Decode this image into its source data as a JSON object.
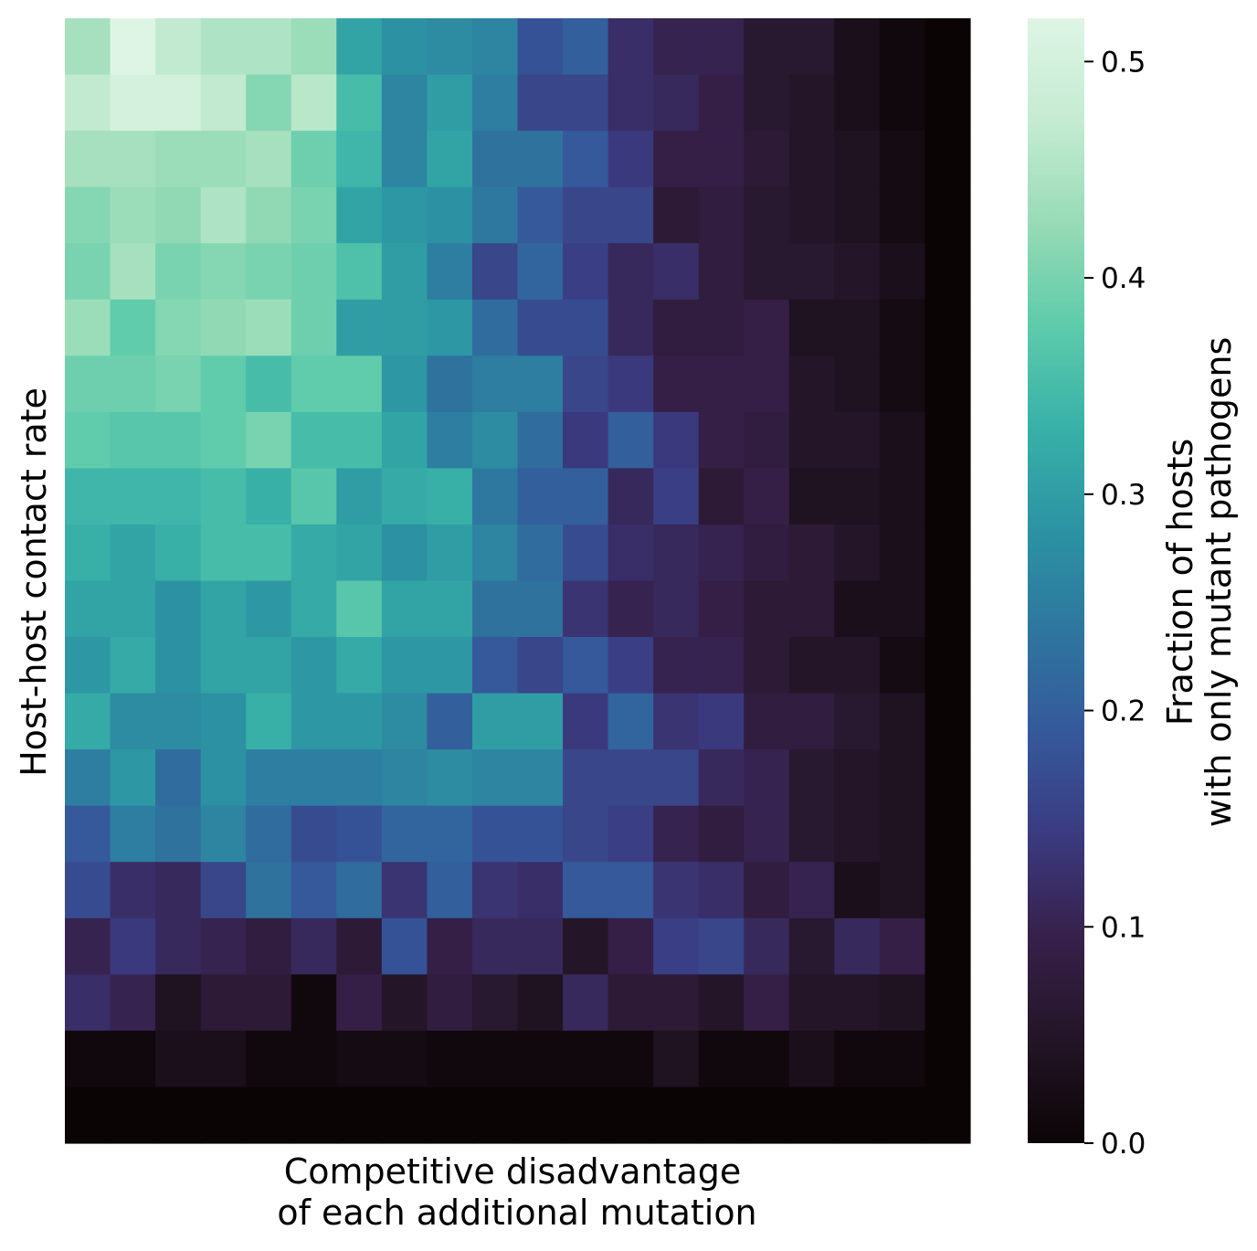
{
  "chart_data": {
    "type": "heatmap",
    "xlabel": [
      "Competitive disadvantage",
      "of each additional mutation"
    ],
    "ylabel": "Host-host contact rate",
    "x_ticks_shown": false,
    "y_ticks_shown": false,
    "grid": false,
    "rows": 20,
    "cols": 20,
    "row_order": "top-to-bottom",
    "values": [
      [
        0.44,
        0.52,
        0.47,
        0.45,
        0.45,
        0.43,
        0.31,
        0.28,
        0.27,
        0.26,
        0.18,
        0.2,
        0.12,
        0.1,
        0.1,
        0.06,
        0.06,
        0.03,
        0.01,
        0.0
      ],
      [
        0.47,
        0.5,
        0.5,
        0.47,
        0.41,
        0.46,
        0.35,
        0.26,
        0.3,
        0.25,
        0.16,
        0.16,
        0.12,
        0.11,
        0.09,
        0.06,
        0.05,
        0.03,
        0.01,
        0.0
      ],
      [
        0.44,
        0.44,
        0.43,
        0.43,
        0.44,
        0.39,
        0.34,
        0.26,
        0.31,
        0.23,
        0.23,
        0.19,
        0.14,
        0.09,
        0.09,
        0.07,
        0.05,
        0.04,
        0.02,
        0.0
      ],
      [
        0.41,
        0.43,
        0.42,
        0.45,
        0.42,
        0.4,
        0.31,
        0.29,
        0.28,
        0.24,
        0.19,
        0.16,
        0.16,
        0.07,
        0.08,
        0.06,
        0.05,
        0.04,
        0.02,
        0.0
      ],
      [
        0.4,
        0.44,
        0.4,
        0.41,
        0.4,
        0.39,
        0.36,
        0.3,
        0.25,
        0.16,
        0.21,
        0.15,
        0.11,
        0.12,
        0.08,
        0.06,
        0.06,
        0.05,
        0.03,
        0.0
      ],
      [
        0.43,
        0.38,
        0.41,
        0.42,
        0.43,
        0.39,
        0.3,
        0.3,
        0.29,
        0.22,
        0.17,
        0.17,
        0.11,
        0.08,
        0.08,
        0.09,
        0.04,
        0.04,
        0.02,
        0.0
      ],
      [
        0.39,
        0.39,
        0.4,
        0.38,
        0.35,
        0.38,
        0.38,
        0.29,
        0.23,
        0.25,
        0.25,
        0.16,
        0.14,
        0.09,
        0.09,
        0.09,
        0.05,
        0.04,
        0.02,
        0.0
      ],
      [
        0.38,
        0.37,
        0.37,
        0.38,
        0.4,
        0.35,
        0.35,
        0.31,
        0.25,
        0.27,
        0.22,
        0.14,
        0.2,
        0.14,
        0.09,
        0.08,
        0.05,
        0.05,
        0.03,
        0.0
      ],
      [
        0.34,
        0.34,
        0.34,
        0.35,
        0.33,
        0.37,
        0.3,
        0.32,
        0.33,
        0.24,
        0.2,
        0.2,
        0.11,
        0.15,
        0.07,
        0.09,
        0.04,
        0.04,
        0.03,
        0.0
      ],
      [
        0.33,
        0.31,
        0.33,
        0.35,
        0.35,
        0.32,
        0.31,
        0.28,
        0.3,
        0.26,
        0.22,
        0.17,
        0.12,
        0.11,
        0.1,
        0.08,
        0.07,
        0.05,
        0.03,
        0.0
      ],
      [
        0.31,
        0.31,
        0.28,
        0.31,
        0.29,
        0.32,
        0.37,
        0.31,
        0.31,
        0.23,
        0.23,
        0.13,
        0.1,
        0.11,
        0.09,
        0.07,
        0.07,
        0.03,
        0.03,
        0.0
      ],
      [
        0.29,
        0.32,
        0.28,
        0.31,
        0.31,
        0.29,
        0.32,
        0.29,
        0.29,
        0.19,
        0.16,
        0.19,
        0.15,
        0.1,
        0.1,
        0.07,
        0.05,
        0.05,
        0.02,
        0.0
      ],
      [
        0.32,
        0.27,
        0.27,
        0.28,
        0.33,
        0.29,
        0.29,
        0.27,
        0.2,
        0.3,
        0.3,
        0.14,
        0.21,
        0.13,
        0.14,
        0.08,
        0.08,
        0.06,
        0.04,
        0.0
      ],
      [
        0.25,
        0.29,
        0.22,
        0.28,
        0.25,
        0.25,
        0.25,
        0.26,
        0.27,
        0.26,
        0.26,
        0.16,
        0.16,
        0.16,
        0.11,
        0.1,
        0.06,
        0.05,
        0.04,
        0.0
      ],
      [
        0.19,
        0.25,
        0.23,
        0.26,
        0.22,
        0.17,
        0.18,
        0.21,
        0.21,
        0.18,
        0.18,
        0.16,
        0.15,
        0.1,
        0.08,
        0.1,
        0.06,
        0.05,
        0.04,
        0.0
      ],
      [
        0.17,
        0.12,
        0.11,
        0.16,
        0.23,
        0.19,
        0.22,
        0.13,
        0.2,
        0.13,
        0.12,
        0.19,
        0.19,
        0.13,
        0.12,
        0.08,
        0.1,
        0.03,
        0.04,
        0.0
      ],
      [
        0.1,
        0.14,
        0.11,
        0.1,
        0.08,
        0.11,
        0.07,
        0.18,
        0.09,
        0.11,
        0.11,
        0.05,
        0.09,
        0.15,
        0.16,
        0.11,
        0.06,
        0.11,
        0.09,
        0.0
      ],
      [
        0.12,
        0.1,
        0.04,
        0.07,
        0.07,
        0.01,
        0.09,
        0.05,
        0.08,
        0.06,
        0.04,
        0.11,
        0.07,
        0.07,
        0.05,
        0.09,
        0.05,
        0.05,
        0.04,
        0.0
      ],
      [
        0.01,
        0.01,
        0.03,
        0.03,
        0.01,
        0.01,
        0.02,
        0.02,
        0.01,
        0.01,
        0.01,
        0.01,
        0.01,
        0.04,
        0.01,
        0.01,
        0.03,
        0.01,
        0.01,
        0.0
      ],
      [
        0.0,
        0.0,
        0.0,
        0.0,
        0.0,
        0.0,
        0.0,
        0.0,
        0.0,
        0.0,
        0.0,
        0.0,
        0.0,
        0.0,
        0.0,
        0.0,
        0.0,
        0.0,
        0.0,
        0.0
      ]
    ],
    "colorbar": {
      "label": [
        "Fraction of hosts",
        "with only mutant pathogens"
      ],
      "range": [
        0,
        0.52
      ],
      "ticks": [
        "0.0",
        "0.1",
        "0.2",
        "0.3",
        "0.4",
        "0.5"
      ],
      "tick_values": [
        0.0,
        0.1,
        0.2,
        0.3,
        0.4,
        0.5
      ],
      "colormap": "mako",
      "stops": [
        "#0b0405",
        "#231526",
        "#37204a",
        "#3b3a80",
        "#35589b",
        "#2e769f",
        "#2c93a3",
        "#38b1a8",
        "#5ecbab",
        "#98dbb6",
        "#c5ebd2",
        "#def5e5"
      ]
    }
  }
}
